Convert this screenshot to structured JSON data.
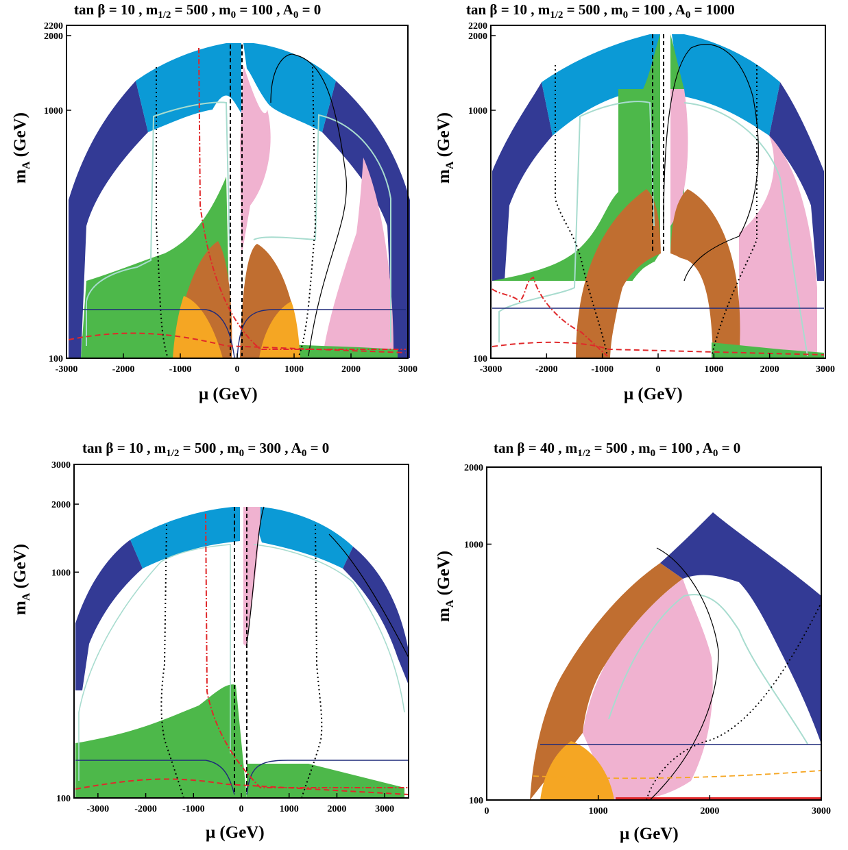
{
  "colors": {
    "dark_blue": "#333a95",
    "light_blue": "#0b9ad6",
    "green": "#4db84a",
    "brown": "#c06e30",
    "pink": "#f0b2d0",
    "orange": "#f5a623",
    "white": "#ffffff",
    "contour_teal": "#a8dccf",
    "red": "#e0282a",
    "navy_line": "#1e2a7a",
    "black": "#000000"
  },
  "chart_data": [
    {
      "id": "p1",
      "type": "area",
      "title": {
        "prefix": "tan β = 10 ,  m",
        "sub1": "1/2",
        "mid1": " = 500 ,  m",
        "sub2": "0",
        "mid2": " = 100 , A",
        "sub3": "0",
        "end": " = 0"
      },
      "xlabel": "μ (GeV)",
      "ylabel": {
        "main": "m",
        "sub": "A",
        "unit": " (GeV)"
      },
      "xlim": [
        -3000,
        3000
      ],
      "ylim": [
        100,
        2200
      ],
      "yscale": "log",
      "xticks": [
        -3000,
        -2000,
        -1000,
        0,
        1000,
        2000,
        3000
      ],
      "xtick_labels": [
        "-3000",
        "-2000",
        "-1000",
        "0",
        "1000",
        "2000",
        "3000"
      ],
      "yticks": [
        100,
        1000,
        2000,
        2200
      ],
      "ytick_labels": [
        "100",
        "1000",
        "2000",
        "2200"
      ]
    },
    {
      "id": "p2",
      "type": "area",
      "title": {
        "prefix": "tan β = 10 ,  m",
        "sub1": "1/2",
        "mid1": " = 500 ,  m",
        "sub2": "0",
        "mid2": " = 100 , A",
        "sub3": "0",
        "end": " = 1000"
      },
      "xlabel": "μ (GeV)",
      "ylabel": {
        "main": "m",
        "sub": "A",
        "unit": " (GeV)"
      },
      "xlim": [
        -3000,
        3000
      ],
      "ylim": [
        100,
        2200
      ],
      "yscale": "log",
      "xticks": [
        -3000,
        -2000,
        -1000,
        0,
        1000,
        2000,
        3000
      ],
      "xtick_labels": [
        "-3000",
        "-2000",
        "-1000",
        "0",
        "1000",
        "2000",
        "3000"
      ],
      "yticks": [
        100,
        1000,
        2000,
        2200
      ],
      "ytick_labels": [
        "100",
        "1000",
        "2000",
        "2200"
      ]
    },
    {
      "id": "p3",
      "type": "area",
      "title": {
        "prefix": "tan β = 10 ,  m",
        "sub1": "1/2",
        "mid1": " = 500 ,  m",
        "sub2": "0",
        "mid2": " = 300 , A",
        "sub3": "0",
        "end": " = 0"
      },
      "xlabel": "μ (GeV)",
      "ylabel": {
        "main": "m",
        "sub": "A",
        "unit": " (GeV)"
      },
      "xlim": [
        -3500,
        3500
      ],
      "ylim": [
        100,
        3000
      ],
      "yscale": "log",
      "xticks": [
        -3000,
        -2000,
        -1000,
        0,
        1000,
        2000,
        3000
      ],
      "xtick_labels": [
        "-3000",
        "-2000",
        "-1000",
        "0",
        "1000",
        "2000",
        "3000"
      ],
      "yticks": [
        100,
        1000,
        2000,
        3000
      ],
      "ytick_labels": [
        "100",
        "1000",
        "2000",
        "3000"
      ]
    },
    {
      "id": "p4",
      "type": "area",
      "title": {
        "prefix": "tan β = 40 ,  m",
        "sub1": "1/2",
        "mid1": " = 500 ,  m",
        "sub2": "0",
        "mid2": " = 100 , A",
        "sub3": "0",
        "end": " = 0"
      },
      "xlabel": "μ (GeV)",
      "ylabel": {
        "main": "m",
        "sub": "A",
        "unit": " (GeV)"
      },
      "xlim": [
        0,
        3000
      ],
      "ylim": [
        100,
        2000
      ],
      "yscale": "log",
      "xticks": [
        0,
        1000,
        2000,
        3000
      ],
      "xtick_labels": [
        "0",
        "1000",
        "2000",
        "3000"
      ],
      "yticks": [
        100,
        1000,
        2000
      ],
      "ytick_labels": [
        "100",
        "1000",
        "2000"
      ]
    }
  ]
}
